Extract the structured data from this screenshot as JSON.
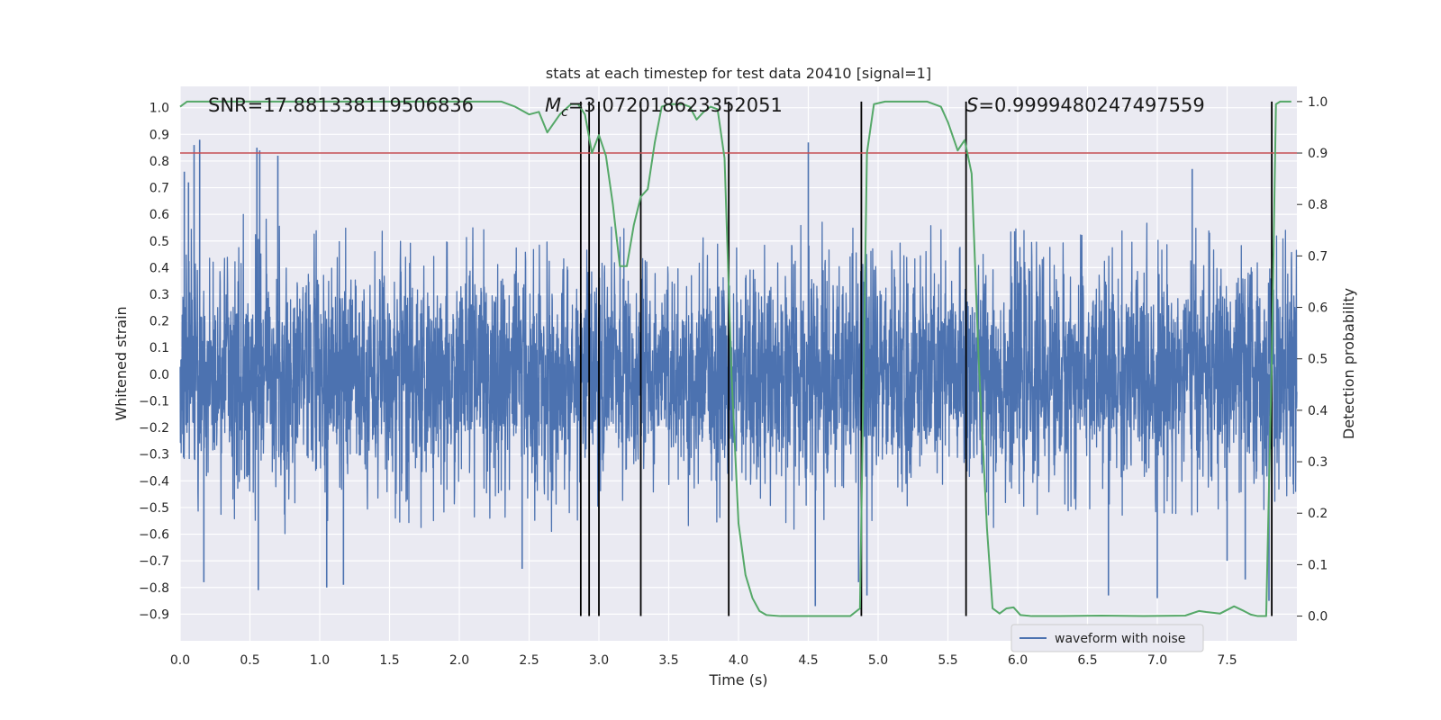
{
  "chart_data": {
    "type": "line",
    "title": "stats at each timestep for test data 20410 [signal=1]",
    "xlabel": "Time (s)",
    "ylabel": "Whitened strain",
    "y2label": "Detection probability",
    "xlim": [
      0,
      8
    ],
    "ylim": [
      -1.0,
      1.08
    ],
    "y2lim": [
      -0.048,
      1.0295
    ],
    "xticks": [
      0.0,
      0.5,
      1.0,
      1.5,
      2.0,
      2.5,
      3.0,
      3.5,
      4.0,
      4.5,
      5.0,
      5.5,
      6.0,
      6.5,
      7.0,
      7.5
    ],
    "xtick_labels": [
      "0.0",
      "0.5",
      "1.0",
      "1.5",
      "2.0",
      "2.5",
      "3.0",
      "3.5",
      "4.0",
      "4.5",
      "5.0",
      "5.5",
      "6.0",
      "6.5",
      "7.0",
      "7.5"
    ],
    "yticks": [
      -0.9,
      -0.8,
      -0.7,
      -0.6,
      -0.5,
      -0.4,
      -0.3,
      -0.2,
      -0.1,
      0.0,
      0.1,
      0.2,
      0.3,
      0.4,
      0.5,
      0.6,
      0.7,
      0.8,
      0.9,
      1.0
    ],
    "ytick_labels": [
      "−0.9",
      "−0.8",
      "−0.7",
      "−0.6",
      "−0.5",
      "−0.4",
      "−0.3",
      "−0.2",
      "−0.1",
      "0.0",
      "0.1",
      "0.2",
      "0.3",
      "0.4",
      "0.5",
      "0.6",
      "0.7",
      "0.8",
      "0.9",
      "1.0"
    ],
    "y2ticks": [
      0.0,
      0.1,
      0.2,
      0.3,
      0.4,
      0.5,
      0.6,
      0.7,
      0.8,
      0.9,
      1.0
    ],
    "y2tick_labels": [
      "0.0",
      "0.1",
      "0.2",
      "0.3",
      "0.4",
      "0.5",
      "0.6",
      "0.7",
      "0.8",
      "0.9",
      "1.0"
    ],
    "grid": true,
    "legend": {
      "entries": [
        "waveform with noise"
      ],
      "placement": "lower-right"
    },
    "annotations": {
      "snr": "SNR=17.881338119506836",
      "mc_symbol": "M",
      "mc_sub": "c",
      "mc_value": "=3.072018623352051",
      "s_symbol": "S",
      "s_value": "=0.9999480247497559"
    },
    "threshold": {
      "axis": "secondary",
      "value": 0.9
    },
    "vertical_markers": [
      2.87,
      2.93,
      3.0,
      3.3,
      3.93,
      4.88,
      5.63,
      7.82
    ],
    "series": [
      {
        "name": "waveform with noise",
        "axis": "primary",
        "style": "noise",
        "duration": 8.0,
        "envelope": [
          [
            0.0,
            0.6
          ],
          [
            0.5,
            0.62
          ],
          [
            1.0,
            0.58
          ],
          [
            2.0,
            0.58
          ],
          [
            3.0,
            0.57
          ],
          [
            3.5,
            0.6
          ],
          [
            4.0,
            0.58
          ],
          [
            5.0,
            0.6
          ],
          [
            6.0,
            0.57
          ],
          [
            7.0,
            0.56
          ],
          [
            7.5,
            0.58
          ],
          [
            8.0,
            0.62
          ]
        ],
        "peaks": [
          [
            0.03,
            0.76
          ],
          [
            0.06,
            0.72
          ],
          [
            0.1,
            0.86
          ],
          [
            0.14,
            0.88
          ],
          [
            0.55,
            0.85
          ],
          [
            0.57,
            0.84
          ],
          [
            0.7,
            0.82
          ],
          [
            0.56,
            -0.81
          ],
          [
            0.17,
            -0.78
          ],
          [
            1.05,
            -0.8
          ],
          [
            1.17,
            -0.79
          ],
          [
            2.45,
            -0.73
          ],
          [
            4.5,
            0.87
          ],
          [
            4.55,
            -0.87
          ],
          [
            4.92,
            -0.83
          ],
          [
            4.86,
            -0.78
          ],
          [
            6.65,
            -0.83
          ],
          [
            7.0,
            -0.84
          ],
          [
            7.63,
            -0.77
          ],
          [
            7.8,
            -0.85
          ],
          [
            7.25,
            0.77
          ],
          [
            7.5,
            -0.7
          ]
        ]
      },
      {
        "name": "",
        "axis": "secondary",
        "style": "probability",
        "x": [
          0.0,
          0.05,
          0.1,
          0.3,
          0.6,
          1.0,
          1.5,
          2.0,
          2.3,
          2.4,
          2.5,
          2.57,
          2.63,
          2.72,
          2.8,
          2.85,
          2.9,
          2.95,
          3.0,
          3.05,
          3.1,
          3.15,
          3.2,
          3.25,
          3.3,
          3.35,
          3.4,
          3.45,
          3.5,
          3.55,
          3.6,
          3.65,
          3.7,
          3.75,
          3.8,
          3.85,
          3.9,
          3.95,
          4.0,
          4.05,
          4.1,
          4.15,
          4.2,
          4.3,
          4.5,
          4.7,
          4.8,
          4.87,
          4.92,
          4.97,
          5.05,
          5.2,
          5.35,
          5.45,
          5.5,
          5.57,
          5.62,
          5.67,
          5.72,
          5.78,
          5.82,
          5.87,
          5.92,
          5.97,
          6.02,
          6.1,
          6.3,
          6.6,
          6.9,
          7.2,
          7.3,
          7.35,
          7.45,
          7.55,
          7.62,
          7.67,
          7.72,
          7.78,
          7.82,
          7.85,
          7.88,
          7.92,
          7.96
        ],
        "y": [
          0.99,
          1.0,
          1.0,
          1.0,
          1.0,
          1.0,
          1.0,
          1.0,
          1.0,
          0.99,
          0.975,
          0.98,
          0.94,
          0.975,
          0.995,
          0.995,
          0.975,
          0.9,
          0.935,
          0.895,
          0.8,
          0.68,
          0.68,
          0.76,
          0.815,
          0.83,
          0.92,
          0.99,
          0.995,
          0.995,
          0.995,
          0.99,
          0.965,
          0.98,
          0.99,
          0.985,
          0.89,
          0.47,
          0.18,
          0.08,
          0.035,
          0.01,
          0.002,
          0.0,
          0.0,
          0.0,
          0.0,
          0.015,
          0.9,
          0.995,
          1.0,
          1.0,
          1.0,
          0.99,
          0.96,
          0.905,
          0.925,
          0.86,
          0.5,
          0.17,
          0.015,
          0.005,
          0.015,
          0.017,
          0.002,
          0.0,
          0.0,
          0.001,
          0.0,
          0.001,
          0.01,
          0.008,
          0.005,
          0.019,
          0.01,
          0.003,
          0.0,
          0.0,
          0.5,
          0.995,
          1.0,
          1.0,
          1.0
        ]
      }
    ]
  },
  "colors": {
    "plot_bg": "#eaeaf2",
    "grid": "#ffffff",
    "waveform": "#4c72b0",
    "probability": "#55a868",
    "threshold": "#c44e52",
    "markers": "#000000"
  }
}
